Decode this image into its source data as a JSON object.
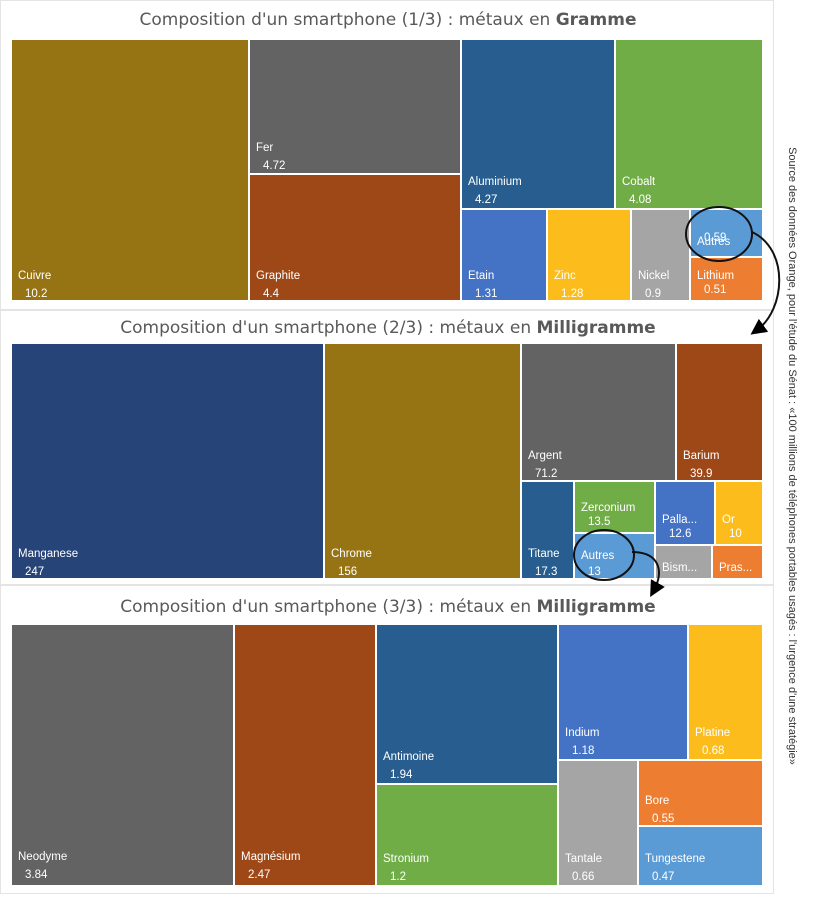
{
  "source_note": "Source des données Orange, pour l'étude du Sénat : «100 millions de téléphones portables usagés : l'urgence d'une stratégie»",
  "chart_data": [
    {
      "type": "treemap",
      "title_prefix": "Composition d'un smartphone (1/3) : métaux en ",
      "title_unit": "Gramme",
      "items": [
        {
          "name": "Cuivre",
          "value": 10.2,
          "color": "#977413"
        },
        {
          "name": "Fer",
          "value": 4.72,
          "color": "#636363"
        },
        {
          "name": "Graphite",
          "value": 4.4,
          "color": "#9e4817"
        },
        {
          "name": "Aluminium",
          "value": 4.27,
          "color": "#275e8f"
        },
        {
          "name": "Cobalt",
          "value": 4.08,
          "color": "#70ad47"
        },
        {
          "name": "Etain",
          "value": 1.31,
          "color": "#4472c4"
        },
        {
          "name": "Zinc",
          "value": 1.28,
          "color": "#fcbd1c"
        },
        {
          "name": "Nickel",
          "value": 0.9,
          "color": "#a5a5a5"
        },
        {
          "name": "Autres",
          "value": 0.59,
          "color": "#5b9bd5"
        },
        {
          "name": "Lithium",
          "value": 0.51,
          "color": "#ed7d31"
        }
      ]
    },
    {
      "type": "treemap",
      "title_prefix": "Composition d'un smartphone (2/3) : métaux en ",
      "title_unit": "Milligramme",
      "items": [
        {
          "name": "Manganese",
          "value": 247,
          "color": "#264478"
        },
        {
          "name": "Chrome",
          "value": 156,
          "color": "#977413"
        },
        {
          "name": "Argent",
          "value": 71.2,
          "color": "#636363"
        },
        {
          "name": "Barium",
          "value": 39.9,
          "color": "#9e4817"
        },
        {
          "name": "Titane",
          "value": 17.3,
          "color": "#275e8f"
        },
        {
          "name": "Zerconium",
          "value": 13.5,
          "color": "#70ad47"
        },
        {
          "name": "Autres",
          "value": 13,
          "color": "#5b9bd5"
        },
        {
          "name": "Palla...",
          "value": 12.6,
          "color": "#4472c4"
        },
        {
          "name": "Or",
          "value": 10,
          "color": "#fcbd1c"
        },
        {
          "name": "Bism...",
          "value": null,
          "color": "#a5a5a5"
        },
        {
          "name": "Pras...",
          "value": null,
          "color": "#ed7d31"
        }
      ]
    },
    {
      "type": "treemap",
      "title_prefix": "Composition d'un smartphone (3/3) : métaux en ",
      "title_unit": "Milligramme",
      "items": [
        {
          "name": "Neodyme",
          "value": 3.84,
          "color": "#636363"
        },
        {
          "name": "Magnésium",
          "value": 2.47,
          "color": "#9e4817"
        },
        {
          "name": "Antimoine",
          "value": 1.94,
          "color": "#275e8f"
        },
        {
          "name": "Stronium",
          "value": 1.2,
          "color": "#70ad47"
        },
        {
          "name": "Indium",
          "value": 1.18,
          "color": "#4472c4"
        },
        {
          "name": "Platine",
          "value": 0.68,
          "color": "#fcbd1c"
        },
        {
          "name": "Tantale",
          "value": 0.66,
          "color": "#a5a5a5"
        },
        {
          "name": "Bore",
          "value": 0.55,
          "color": "#ed7d31"
        },
        {
          "name": "Tungestene",
          "value": 0.47,
          "color": "#5b9bd5"
        }
      ]
    }
  ]
}
